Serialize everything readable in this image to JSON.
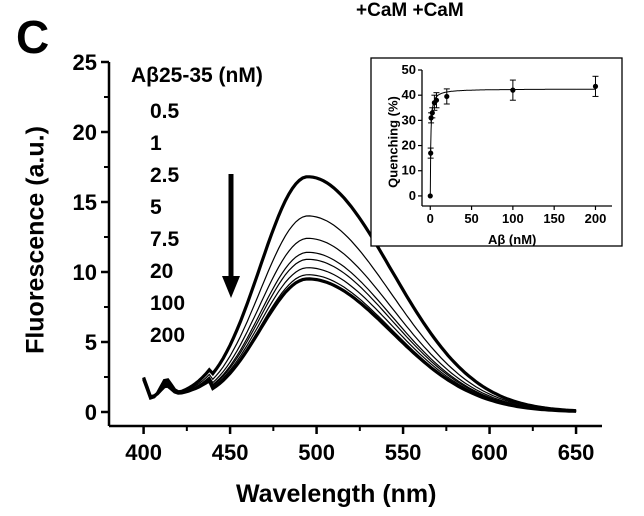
{
  "panel_letter": "C",
  "header": "+CaM +CaM",
  "legend": {
    "title": "Aβ25-35 (nM)",
    "items": [
      "0.5",
      "1",
      "2.5",
      "5",
      "7.5",
      "20",
      "100",
      "200"
    ]
  },
  "chart_data": [
    {
      "type": "line",
      "xlabel": "Wavelength (nm)",
      "ylabel": "Fluorescence (a.u.)",
      "xlim": [
        380,
        665
      ],
      "ylim": [
        -1,
        25
      ],
      "xticks": [
        400,
        450,
        500,
        550,
        600,
        650
      ],
      "yticks": [
        0,
        5,
        10,
        15,
        20,
        25
      ],
      "peak_wavelength": 495,
      "arrow": "down",
      "series": [
        {
          "name": "0.5",
          "peak": 16.8,
          "bold": true
        },
        {
          "name": "1",
          "peak": 14.0
        },
        {
          "name": "2.5",
          "peak": 12.4
        },
        {
          "name": "5",
          "peak": 11.4
        },
        {
          "name": "7.5",
          "peak": 10.9
        },
        {
          "name": "20",
          "peak": 10.3
        },
        {
          "name": "100",
          "peak": 9.8
        },
        {
          "name": "200",
          "peak": 9.5,
          "bold": true
        }
      ]
    },
    {
      "type": "scatter",
      "xlabel": "Aβ (nM)",
      "ylabel": "Quenching (%)",
      "xlim": [
        -10,
        220
      ],
      "ylim": [
        -4,
        50
      ],
      "xticks": [
        0,
        50,
        100,
        150,
        200
      ],
      "yticks": [
        0,
        10,
        20,
        30,
        40,
        50
      ],
      "points": [
        {
          "x": 0,
          "y": 0,
          "err": 0
        },
        {
          "x": 0.5,
          "y": 17,
          "err": 2
        },
        {
          "x": 1,
          "y": 31,
          "err": 2
        },
        {
          "x": 2.5,
          "y": 33,
          "err": 2
        },
        {
          "x": 5,
          "y": 37,
          "err": 3
        },
        {
          "x": 7.5,
          "y": 38,
          "err": 3
        },
        {
          "x": 20,
          "y": 39.5,
          "err": 3
        },
        {
          "x": 100,
          "y": 42,
          "err": 4
        },
        {
          "x": 200,
          "y": 43.5,
          "err": 4
        }
      ],
      "fit": {
        "bmax": 42.5,
        "kd": 0.6
      }
    }
  ]
}
